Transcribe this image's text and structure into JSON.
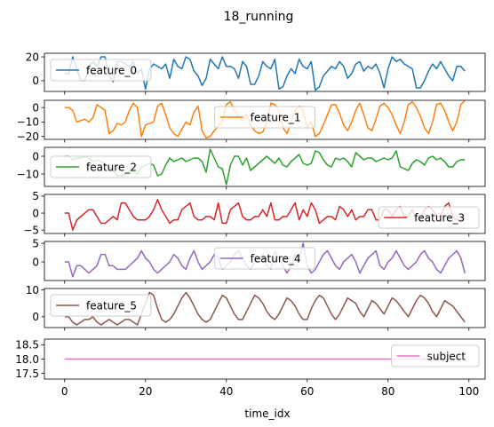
{
  "chart_data": {
    "type": "line",
    "title": "18_running",
    "xlabel": "time_idx",
    "xlim": [
      -5,
      104
    ],
    "xticks": [
      0,
      20,
      40,
      60,
      80,
      100
    ],
    "panels": [
      {
        "name": "feature_0",
        "color": "#1f77b4",
        "ylim": [
          -9,
          23
        ],
        "yticks": [
          0,
          20
        ],
        "legend_loc": "upper-left",
        "x_start": 0,
        "values": [
          6,
          6,
          20,
          10,
          0,
          0,
          12,
          16,
          12,
          20,
          20,
          4,
          -1,
          16,
          16,
          14,
          12,
          16,
          6,
          10,
          -7,
          10,
          14,
          12,
          10,
          14,
          2,
          18,
          12,
          10,
          20,
          18,
          8,
          4,
          -4,
          2,
          18,
          14,
          10,
          20,
          12,
          12,
          10,
          2,
          16,
          12,
          -3,
          -3,
          4,
          16,
          12,
          10,
          18,
          -7,
          -5,
          4,
          10,
          6,
          18,
          12,
          10,
          16,
          -8,
          -5,
          4,
          8,
          12,
          10,
          16,
          12,
          2,
          6,
          14,
          16,
          8,
          12,
          10,
          14,
          6,
          -6,
          10,
          20,
          16,
          18,
          14,
          12,
          10,
          -6,
          -6,
          0,
          8,
          14,
          10,
          16,
          10,
          4,
          0,
          12,
          12,
          8
        ]
      },
      {
        "name": "feature_1",
        "color": "#ff7f0e",
        "ylim": [
          -22,
          5
        ],
        "yticks": [
          0,
          -10,
          -20
        ],
        "legend_loc": "upper-center",
        "x_start": 0,
        "values": [
          0,
          0,
          -2,
          -10,
          -9,
          -8,
          -10,
          -7,
          2,
          0,
          -2,
          -18,
          -16,
          -11,
          -12,
          -10,
          -2,
          3,
          0,
          -20,
          -12,
          -11,
          -10,
          1,
          3,
          -5,
          -14,
          -18,
          -20,
          -15,
          -10,
          -12,
          -3,
          1,
          -16,
          -21,
          -20,
          -16,
          -13,
          -10,
          2,
          4,
          -2,
          -6,
          -9,
          -4,
          -12,
          -16,
          -18,
          -17,
          -10,
          3,
          2,
          -2,
          -14,
          -18,
          -10,
          -2,
          1,
          -2,
          -14,
          -10,
          -20,
          -18,
          -12,
          -5,
          2,
          2,
          -4,
          -12,
          -16,
          -10,
          -2,
          3,
          -5,
          -14,
          -16,
          -8,
          1,
          3,
          0,
          -5,
          -12,
          -18,
          -10,
          2,
          4,
          0,
          -6,
          -14,
          -18,
          -10,
          2,
          3,
          -2,
          -10,
          -16,
          -10,
          2,
          5
        ]
      },
      {
        "name": "feature_2",
        "color": "#2ca02c",
        "ylim": [
          -17,
          5
        ],
        "yticks": [
          0,
          -10
        ],
        "legend_loc": "center-left",
        "x_start": 0,
        "values": [
          0,
          0,
          -2,
          -1,
          -1,
          0,
          -1,
          -3,
          -2,
          -3,
          -5,
          -6,
          -8,
          -11,
          -11,
          -10,
          -8,
          -9,
          -10,
          -6,
          -5,
          -4,
          -5,
          -11,
          -10,
          -5,
          -1,
          -3,
          -2,
          -1,
          -3,
          -2,
          -1,
          -1,
          -3,
          -9,
          4,
          -1,
          -6,
          -7,
          -16,
          -5,
          0,
          0,
          -5,
          -1,
          -8,
          -6,
          -4,
          -2,
          0,
          -2,
          -4,
          -1,
          -5,
          -6,
          -3,
          -1,
          1,
          -4,
          -5,
          -4,
          3,
          2,
          -2,
          -5,
          -6,
          -1,
          -2,
          -1,
          -3,
          -6,
          2,
          0,
          -2,
          -1,
          -1,
          -3,
          -2,
          -1,
          -2,
          -1,
          3,
          -6,
          -7,
          -8,
          -4,
          -2,
          -3,
          -5,
          -1,
          0,
          -2,
          -1,
          -3,
          -6,
          -6,
          -3,
          -2,
          -2
        ]
      },
      {
        "name": "feature_3",
        "color": "#d62728",
        "ylim": [
          -6,
          5.5
        ],
        "yticks": [
          5,
          0,
          -5
        ],
        "legend_loc": "center-right",
        "x_start": 0,
        "values": [
          0,
          0,
          -5,
          -2,
          -1,
          0,
          1,
          1,
          -1,
          -3,
          -3,
          -2,
          -1,
          -2,
          3,
          3,
          1,
          -1,
          -2,
          -2,
          -2,
          -1,
          1,
          4,
          1,
          -1,
          -3,
          -2,
          -2,
          1,
          2,
          3,
          -1,
          -2,
          -2,
          -1,
          -1,
          -2,
          3,
          -3,
          -3,
          1,
          2,
          3,
          -1,
          -2,
          -2,
          -1,
          -1,
          1,
          -1,
          3,
          -2,
          -2,
          -1,
          -1,
          1,
          3,
          -2,
          1,
          -1,
          3,
          1,
          -3,
          -2,
          -1,
          -1,
          -2,
          2,
          1,
          -1,
          1,
          -2,
          -1,
          -1,
          1,
          1,
          -2,
          -2,
          1,
          1,
          -1,
          1,
          2,
          -1,
          -1,
          1,
          -2,
          -2,
          1,
          2,
          1,
          -1,
          -1,
          2,
          3,
          -1,
          -2,
          -2,
          -1
        ]
      },
      {
        "name": "feature_4",
        "color": "#9467bd",
        "ylim": [
          -5,
          5.5
        ],
        "yticks": [
          5,
          0
        ],
        "legend_loc": "upper-center",
        "x_start": 0,
        "values": [
          0,
          0,
          -4,
          -1,
          -1,
          -2,
          -3,
          -2,
          -1,
          2,
          2,
          -1,
          -1,
          -2,
          -2,
          -2,
          -1,
          0,
          1,
          3,
          1,
          0,
          -2,
          -3,
          -2,
          -1,
          0,
          2,
          1,
          -1,
          -2,
          1,
          3,
          0,
          -2,
          -1,
          0,
          2,
          1,
          -2,
          -1,
          0,
          2,
          3,
          1,
          -1,
          -2,
          0,
          1,
          2,
          -1,
          -2,
          3,
          1,
          -1,
          -3,
          -1,
          2,
          1,
          5,
          -1,
          -3,
          -2,
          0,
          2,
          3,
          1,
          -1,
          -2,
          0,
          1,
          2,
          0,
          -3,
          -1,
          1,
          2,
          3,
          -1,
          -2,
          0,
          1,
          3,
          1,
          -1,
          -2,
          -1,
          0,
          2,
          3,
          1,
          0,
          -2,
          -3,
          -1,
          1,
          2,
          3,
          1,
          -3
        ]
      },
      {
        "name": "feature_5",
        "color": "#8c564b",
        "ylim": [
          -4,
          10.5
        ],
        "yticks": [
          10,
          0
        ],
        "legend_loc": "upper-left",
        "x_start": 0,
        "values": [
          0,
          0,
          -2,
          -3,
          -2,
          -1,
          -1,
          0,
          -2,
          -3,
          -2,
          -1,
          -2,
          -3,
          -2,
          -1,
          -1,
          -2,
          -3,
          1,
          5,
          9,
          8,
          3,
          -1,
          -2,
          -1,
          1,
          4,
          7,
          9,
          7,
          4,
          1,
          -1,
          -2,
          -1,
          2,
          5,
          8,
          7,
          4,
          1,
          -1,
          -1,
          2,
          5,
          8,
          7,
          5,
          2,
          0,
          -1,
          1,
          4,
          7,
          6,
          4,
          1,
          -1,
          -1,
          3,
          6,
          8,
          7,
          4,
          1,
          -1,
          1,
          4,
          7,
          6,
          5,
          2,
          0,
          3,
          6,
          5,
          3,
          1,
          4,
          7,
          6,
          4,
          2,
          0,
          3,
          6,
          8,
          7,
          5,
          2,
          0,
          3,
          6,
          5,
          4,
          2,
          0,
          -2
        ]
      },
      {
        "name": "subject",
        "color": "#e377c2",
        "ylim": [
          17.3,
          18.7
        ],
        "yticks": [
          18.5,
          18.0,
          17.5
        ],
        "ytick_format": "1dp",
        "legend_loc": "upper-right",
        "x_start": 0,
        "values": [
          18,
          18,
          18,
          18,
          18,
          18,
          18,
          18,
          18,
          18,
          18,
          18,
          18,
          18,
          18,
          18,
          18,
          18,
          18,
          18,
          18,
          18,
          18,
          18,
          18,
          18,
          18,
          18,
          18,
          18,
          18,
          18,
          18,
          18,
          18,
          18,
          18,
          18,
          18,
          18,
          18,
          18,
          18,
          18,
          18,
          18,
          18,
          18,
          18,
          18,
          18,
          18,
          18,
          18,
          18,
          18,
          18,
          18,
          18,
          18,
          18,
          18,
          18,
          18,
          18,
          18,
          18,
          18,
          18,
          18,
          18,
          18,
          18,
          18,
          18,
          18,
          18,
          18,
          18,
          18,
          18,
          18,
          18,
          18,
          18,
          18,
          18,
          18,
          18,
          18,
          18,
          18,
          18,
          18,
          18,
          18,
          18,
          18,
          18,
          18
        ]
      }
    ]
  }
}
